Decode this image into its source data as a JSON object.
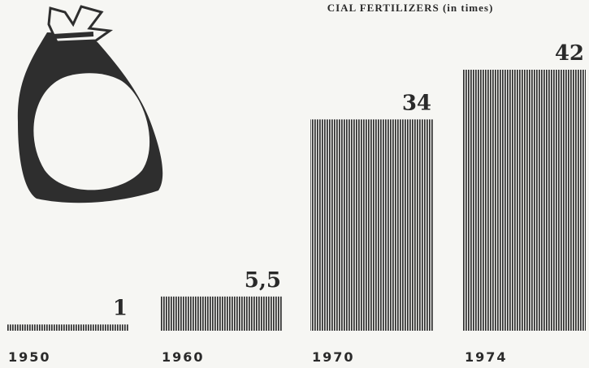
{
  "chart_data": {
    "type": "bar",
    "title": "CIAL FERTILIZERS (in times)",
    "categories": [
      "1950",
      "1960",
      "1970",
      "1974"
    ],
    "values": [
      1,
      5.5,
      34,
      42
    ],
    "value_labels": [
      "1",
      "5,5",
      "34",
      "42"
    ],
    "color": "#2e2e2e"
  }
}
